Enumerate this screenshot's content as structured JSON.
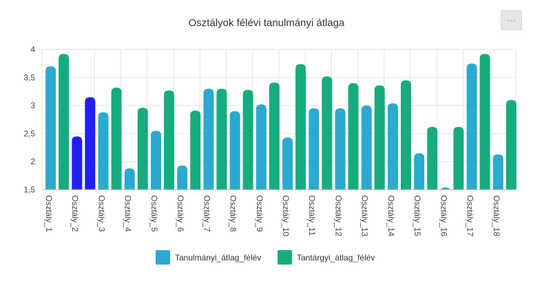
{
  "menu": {
    "label": "···"
  },
  "chart_data": {
    "type": "bar",
    "title": "Osztályok félévi tanulmányi átlaga",
    "xlabel": "",
    "ylabel": "",
    "ylim": [
      1.5,
      4
    ],
    "yticks": [
      "1,5",
      "2",
      "2,5",
      "3",
      "3,5",
      "4"
    ],
    "ytick_values": [
      1.5,
      2,
      2.5,
      3,
      3.5,
      4
    ],
    "grid": true,
    "legend": "bottom",
    "categories": [
      "Osztály_1",
      "Osztály_2",
      "Osztály_3",
      "Osztály_4",
      "Osztály_5",
      "Osztály_6",
      "Osztály_7",
      "Osztály_8",
      "Osztály_9",
      "Osztály_10",
      "Osztály_11",
      "Osztály_12",
      "Osztály_13",
      "Osztály_14",
      "Osztály_15",
      "Osztály_16",
      "Osztály_17",
      "Osztály_18"
    ],
    "series": [
      {
        "name": "Tanulmányi_átlag_félév",
        "color": "#2ba9cf",
        "values": [
          3.7,
          2.45,
          2.88,
          1.88,
          2.55,
          1.93,
          3.3,
          2.9,
          3.02,
          2.43,
          2.95,
          2.95,
          3.0,
          3.04,
          2.15,
          1.54,
          3.75,
          2.13
        ]
      },
      {
        "name": "Tantárgyi_átlag_félév",
        "color": "#16ac80",
        "values": [
          3.92,
          3.15,
          3.32,
          2.96,
          3.27,
          2.91,
          3.3,
          3.28,
          3.41,
          3.74,
          3.52,
          3.4,
          3.36,
          3.45,
          2.62,
          2.62,
          3.92,
          3.1
        ]
      }
    ],
    "highlight": {
      "series": 0,
      "points": [
        1
      ],
      "color": "#2020f5"
    },
    "highlight_secondary": {
      "series": 1,
      "points": [
        1
      ],
      "color": "#2020f5"
    }
  }
}
